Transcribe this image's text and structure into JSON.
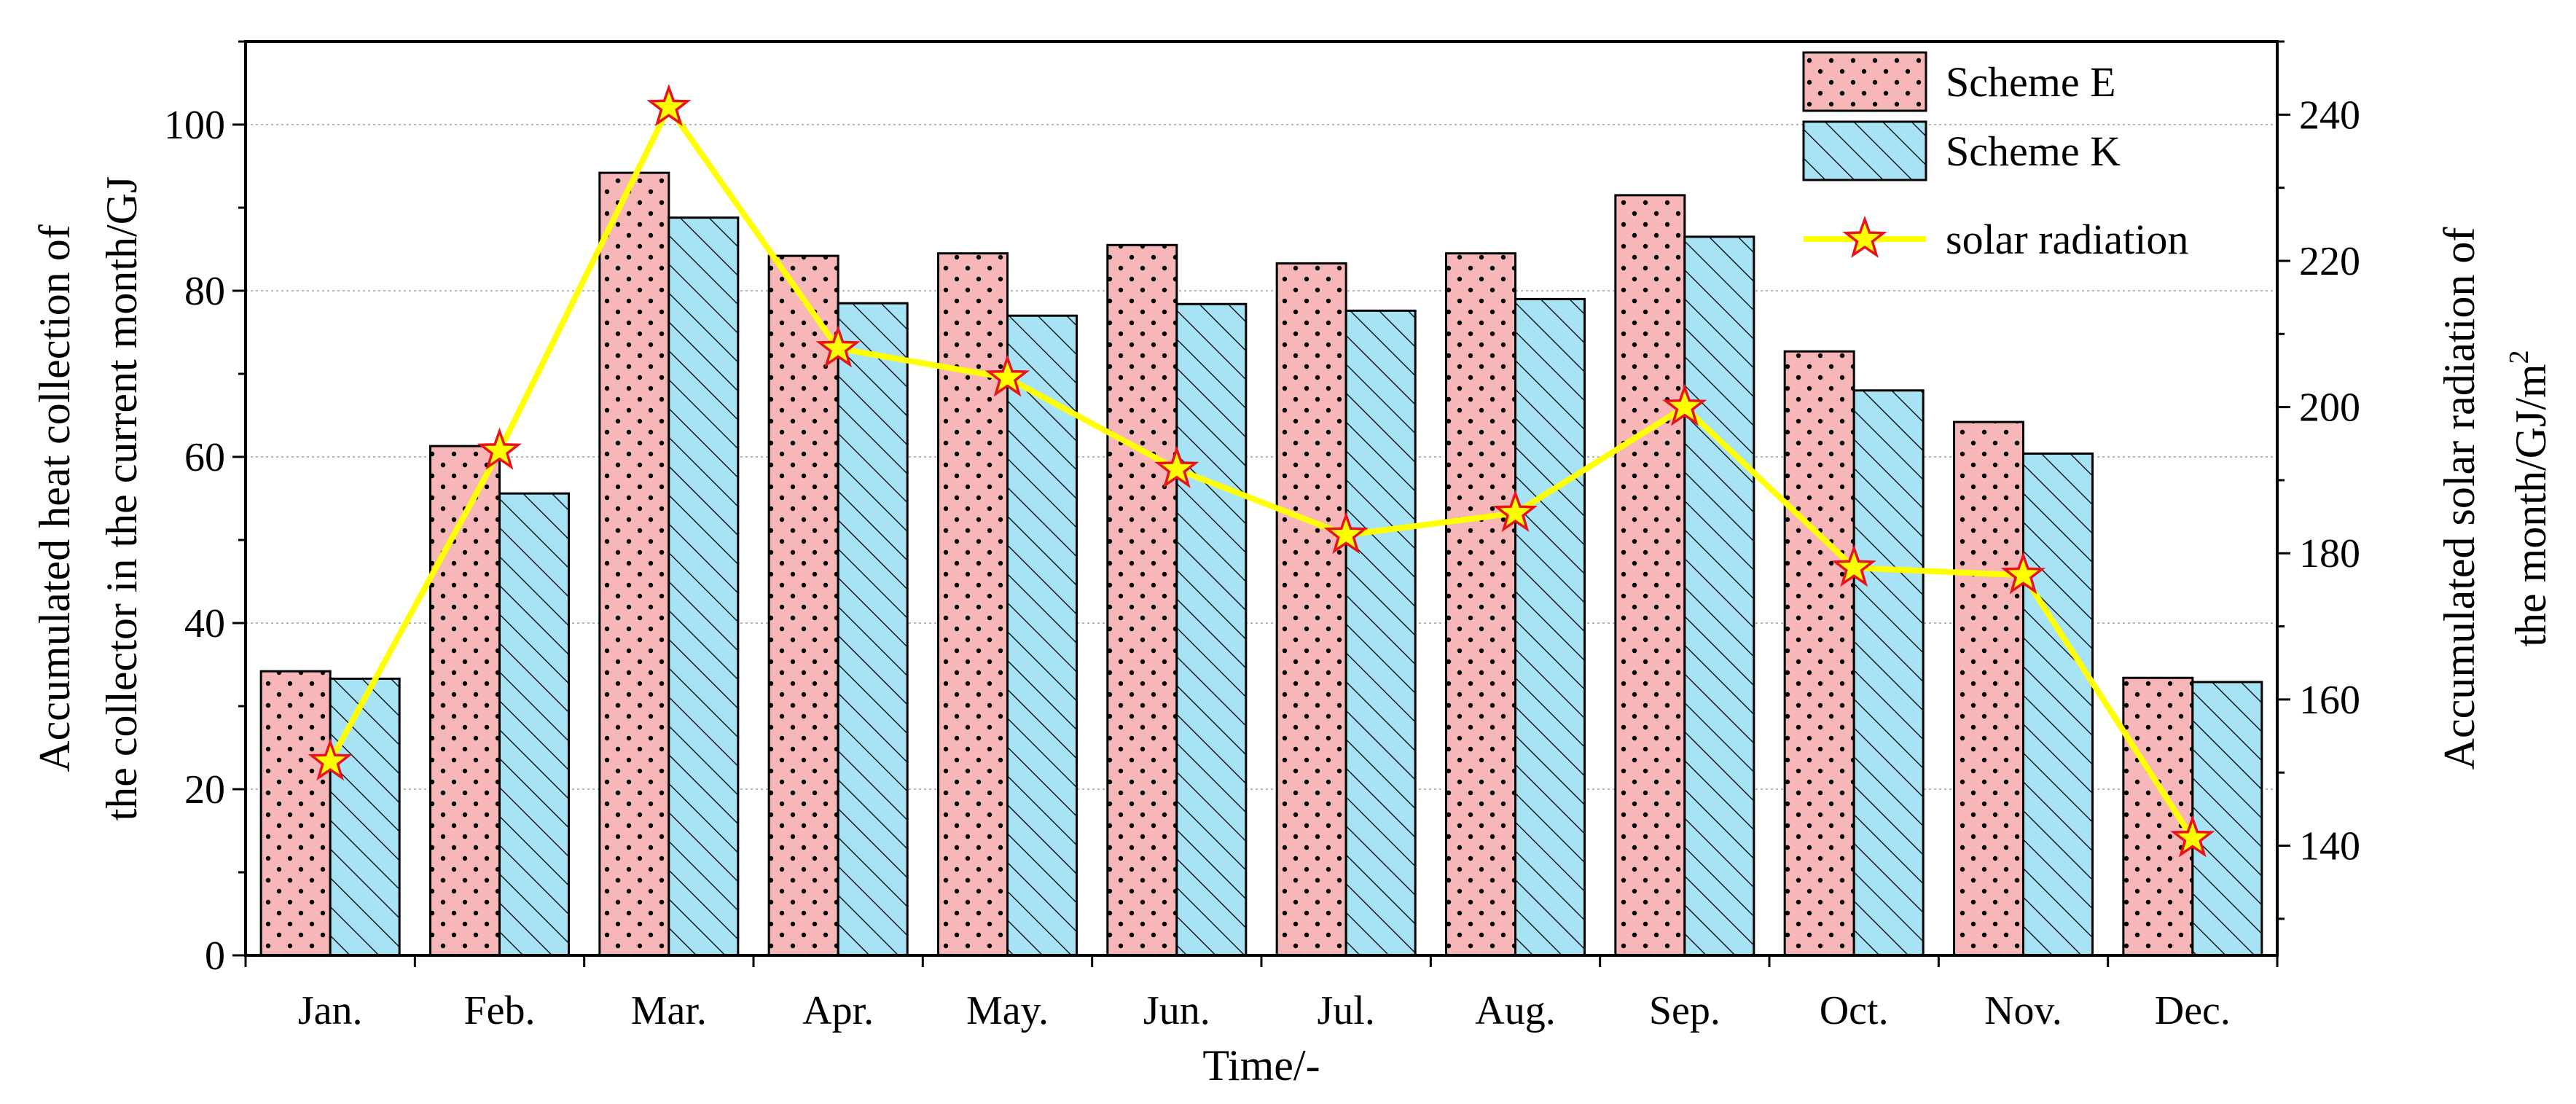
{
  "chart_data": {
    "type": "bar",
    "title": "",
    "xlabel": "Time/-",
    "ylabel_lines": [
      "Accumulated heat collection of",
      "the collector in the current month/GJ"
    ],
    "y2label_lines": [
      "Accumulated solar radiation of",
      "the month/GJ/m",
      "2"
    ],
    "categories": [
      "Jan.",
      "Feb.",
      "Mar.",
      "Apr.",
      "May.",
      "Jun.",
      "Jul.",
      "Aug.",
      "Sep.",
      "Oct.",
      "Nov.",
      "Dec."
    ],
    "ylim": [
      0,
      110
    ],
    "y_ticks": [
      0,
      20,
      40,
      60,
      80,
      100
    ],
    "y2lim": [
      125,
      250
    ],
    "y2_ticks": [
      140,
      160,
      180,
      200,
      220,
      240
    ],
    "grid": true,
    "legend_position": "top-right",
    "series": [
      {
        "name": "Scheme E",
        "kind": "bar",
        "axis": "left",
        "color": "#f7b7b8",
        "values": [
          34.2,
          61.3,
          94.2,
          84.2,
          84.5,
          85.5,
          83.3,
          84.5,
          91.5,
          72.7,
          64.2,
          33.4
        ]
      },
      {
        "name": "Scheme K",
        "kind": "bar",
        "axis": "left",
        "color": "#a8e2f5",
        "values": [
          33.3,
          55.6,
          88.8,
          78.5,
          77.0,
          78.4,
          77.6,
          79.0,
          86.5,
          68.0,
          60.4,
          32.9
        ]
      },
      {
        "name": "solar radiation",
        "kind": "line",
        "axis": "right",
        "color": "#ffff00",
        "values": [
          151.5,
          194.0,
          241.0,
          208.0,
          204.0,
          191.5,
          182.5,
          185.5,
          200.0,
          178.0,
          177.0,
          141.0
        ]
      }
    ]
  }
}
